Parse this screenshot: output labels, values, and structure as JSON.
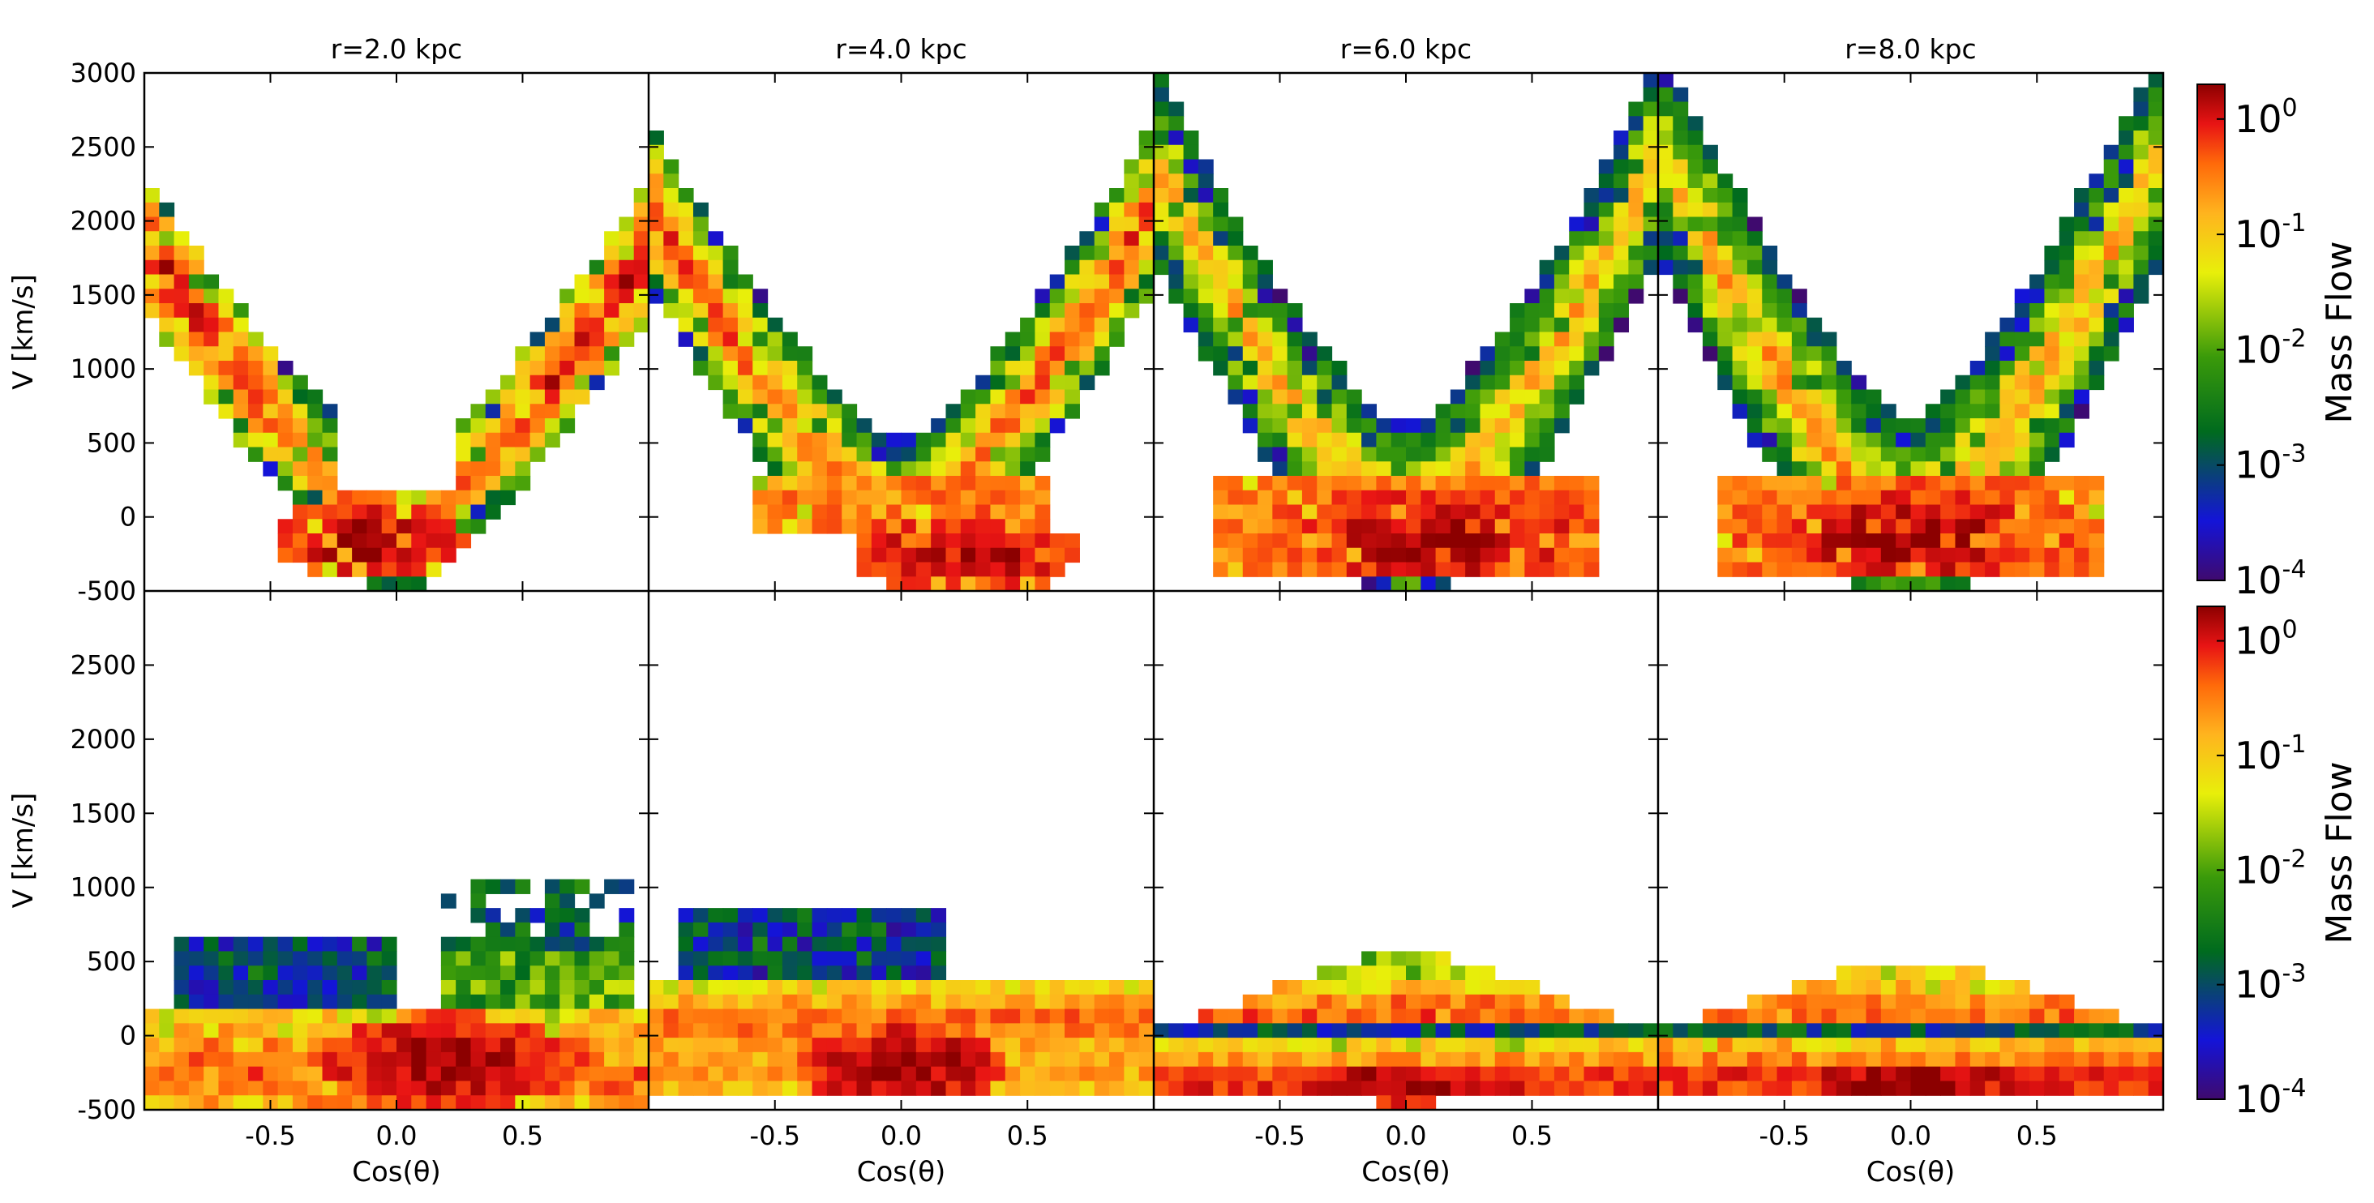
{
  "chart_data": {
    "type": "heatmap",
    "figure_layout": "2 rows x 4 columns of 2D histograms with a shared colorbar per row",
    "colormap": {
      "name": "rainbow-like (purple-blue-green-yellow-orange-red)",
      "stops": [
        "#3f0a6e",
        "#1414d8",
        "#006b1e",
        "#3a9a0a",
        "#e8ef0a",
        "#ffb41e",
        "#ff6a0a",
        "#e81414",
        "#8c0000"
      ]
    },
    "colorbar": {
      "label": "Mass Flow",
      "scale": "log",
      "range": [
        0.0001,
        2
      ],
      "ticks": [
        {
          "base": "10",
          "exp": "0"
        },
        {
          "base": "10",
          "exp": "-1"
        },
        {
          "base": "10",
          "exp": "-2"
        },
        {
          "base": "10",
          "exp": "-3"
        },
        {
          "base": "10",
          "exp": "-4"
        }
      ]
    },
    "xlabel": "Cos(θ)",
    "ylabel": "V [km/s]",
    "xlim": [
      -1,
      1
    ],
    "ylim": [
      -500,
      3000
    ],
    "xticks": [
      "-0.5",
      "0.0",
      "0.5"
    ],
    "yticks_top": [
      "3000",
      "2500",
      "2000",
      "1500",
      "1000",
      "500",
      "0",
      "-500"
    ],
    "yticks_bottom": [
      "2500",
      "2000",
      "1500",
      "1000",
      "500",
      "0",
      "-500"
    ],
    "grid": false,
    "panel_titles": [
      "r=2.0 kpc",
      "r=4.0 kpc",
      "r=6.0 kpc",
      "r=8.0 kpc"
    ],
    "panels": [
      {
        "row": 0,
        "col": 0,
        "pattern": "U-shaped band: high velocity (~2000 km/s) at cos=-1, dips to 0 near cos=0, rises to ~2000 km/s at cos=1; high mass flow (red) near V≈-200 around cos≈-0.1"
      },
      {
        "row": 0,
        "col": 1,
        "pattern": "S/U-shaped band peaking ~2200 km/s at both ends, trough ~0 km/s; red concentration at V≈-300 for cos 0 to 0.4"
      },
      {
        "row": 0,
        "col": 2,
        "pattern": "Wide U-band from ~2700 km/s at cos=-1 down to ~0 at cos≈0 and back up; red at V≈-300 for cos 0.2–0.5"
      },
      {
        "row": 0,
        "col": 3,
        "pattern": "Broad U-band from ~2900 km/s down to ~-300 km/s; red concentration near V≈-300 for cos -0.2 to 0.2"
      },
      {
        "row": 1,
        "col": 0,
        "pattern": "Low-velocity spread -500 to 1200 km/s; blue/purple cloud at V≈300 for cos<0; red at V≈-200 around cos 0 to 0.6"
      },
      {
        "row": 1,
        "col": 1,
        "pattern": "Band between -400 and 900 km/s; blue/purple lobe near cos≈-0.4 up to 900; red near V≈-200 at cos≈0"
      },
      {
        "row": 1,
        "col": 2,
        "pattern": "Thin wavy band -400 to 700 km/s; red near V≈-350 at cos≈0"
      },
      {
        "row": 1,
        "col": 3,
        "pattern": "Thin wavy band -400 to 600 km/s; red near V≈-300 at cos≈0"
      }
    ]
  }
}
